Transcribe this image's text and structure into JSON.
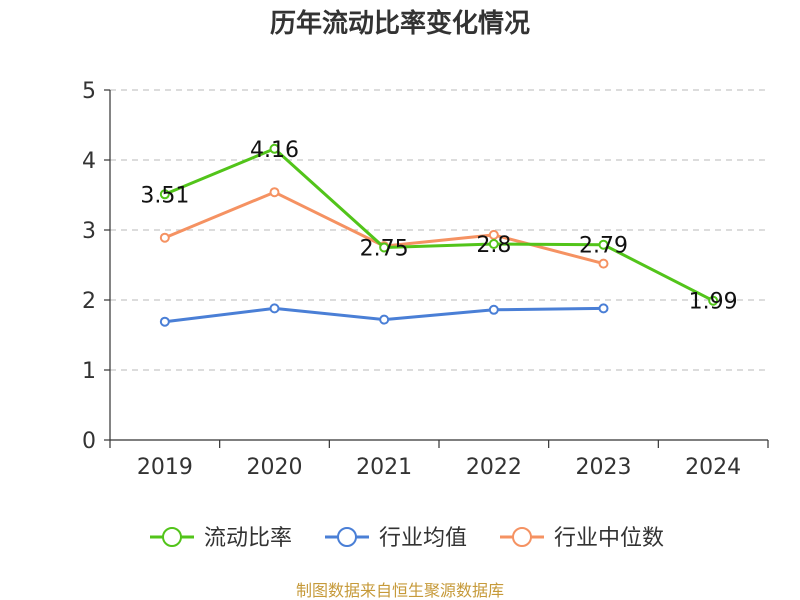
{
  "chart_data": {
    "type": "line",
    "title": "历年流动比率变化情况",
    "categories": [
      "2019",
      "2020",
      "2021",
      "2022",
      "2023",
      "2024"
    ],
    "yticks": [
      "0",
      "1",
      "2",
      "3",
      "4",
      "5"
    ],
    "ylim": [
      0,
      5
    ],
    "grid": true,
    "legend_position": "bottom",
    "series": [
      {
        "name": "流动比率",
        "color": "#52c41a",
        "values": [
          3.51,
          4.16,
          2.75,
          2.8,
          2.79,
          1.99
        ],
        "labels": [
          "3.51",
          "4.16",
          "2.75",
          "2.8",
          "2.79",
          "1.99"
        ]
      },
      {
        "name": "行业均值",
        "color": "#4a7fd6",
        "values": [
          1.69,
          1.88,
          1.72,
          1.86,
          1.88,
          null
        ]
      },
      {
        "name": "行业中位数",
        "color": "#f59262",
        "values": [
          2.89,
          3.54,
          2.77,
          2.93,
          2.52,
          null
        ]
      }
    ],
    "source": "制图数据来自恒生聚源数据库"
  }
}
